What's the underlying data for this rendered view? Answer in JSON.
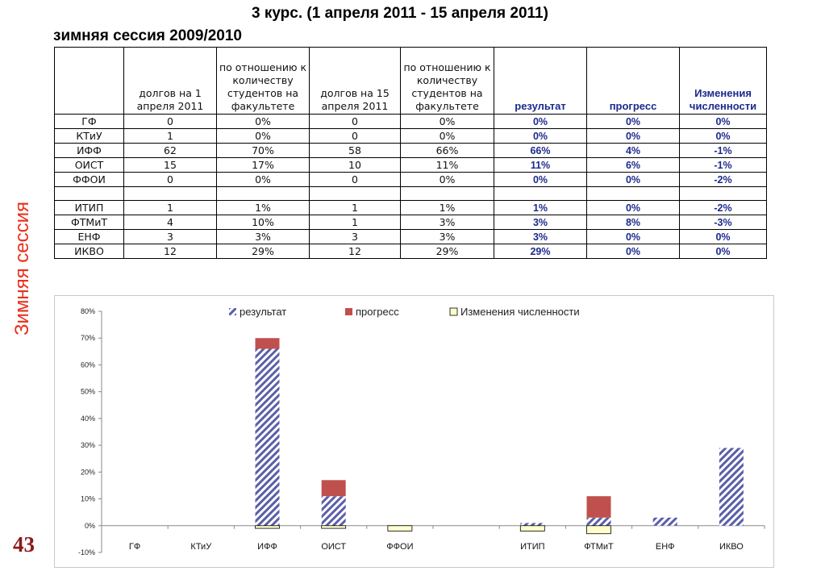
{
  "header": {
    "title": "3 курс.  (1 апреля 2011  -  15 апреля 2011)",
    "subtitle": "зимняя сессия 2009/2010",
    "side_label": "Зимняя сессия",
    "page_number": "43"
  },
  "table": {
    "columns": [
      "",
      "долгов на 1 апреля 2011",
      "по отношению к количеству студентов на факультете",
      "долгов на 15 апреля 2011",
      "по отношению к количеству студентов на факультете",
      "результат",
      "прогресс",
      "Изменения численности"
    ],
    "rows": [
      [
        "ГФ",
        "0",
        "0%",
        "0",
        "0%",
        "0%",
        "0%",
        "0%"
      ],
      [
        "КТиУ",
        "1",
        "0%",
        "0",
        "0%",
        "0%",
        "0%",
        "0%"
      ],
      [
        "ИФФ",
        "62",
        "70%",
        "58",
        "66%",
        "66%",
        "4%",
        "-1%"
      ],
      [
        "ОИСТ",
        "15",
        "17%",
        "10",
        "11%",
        "11%",
        "6%",
        "-1%"
      ],
      [
        "ФФОИ",
        "0",
        "0%",
        "0",
        "0%",
        "0%",
        "0%",
        "-2%"
      ],
      [
        "",
        "",
        "",
        "",
        "",
        "",
        "",
        ""
      ],
      [
        "ИТИП",
        "1",
        "1%",
        "1",
        "1%",
        "1%",
        "0%",
        "-2%"
      ],
      [
        "ФТМиТ",
        "4",
        "10%",
        "1",
        "3%",
        "3%",
        "8%",
        "-3%"
      ],
      [
        "ЕНФ",
        "3",
        "3%",
        "3",
        "3%",
        "3%",
        "0%",
        "0%"
      ],
      [
        "ИКВО",
        "12",
        "29%",
        "12",
        "29%",
        "29%",
        "0%",
        "0%"
      ]
    ]
  },
  "chart_data": {
    "type": "bar",
    "stacked": true,
    "categories": [
      "ГФ",
      "КТиУ",
      "ИФФ",
      "ОИСТ",
      "ФФОИ",
      "",
      "ИТИП",
      "ФТМиТ",
      "ЕНФ",
      "ИКВО"
    ],
    "series": [
      {
        "name": "результат",
        "values": [
          0,
          0,
          66,
          11,
          0,
          0,
          1,
          3,
          3,
          29
        ],
        "color": "#5a5fa8",
        "pattern": "diagonal-hatch"
      },
      {
        "name": "прогресс",
        "values": [
          0,
          0,
          4,
          6,
          0,
          0,
          0,
          8,
          0,
          0
        ],
        "color": "#c0504d"
      },
      {
        "name": "Изменения численности",
        "values": [
          0,
          0,
          -1,
          -1,
          -2,
          0,
          -2,
          -3,
          0,
          0
        ],
        "color": "#ffffcc"
      }
    ],
    "ylim": [
      -10,
      80
    ],
    "yticks": [
      "-10%",
      "0%",
      "10%",
      "20%",
      "30%",
      "40%",
      "50%",
      "60%",
      "70%",
      "80%"
    ],
    "legend_position": "top",
    "grid": false
  }
}
